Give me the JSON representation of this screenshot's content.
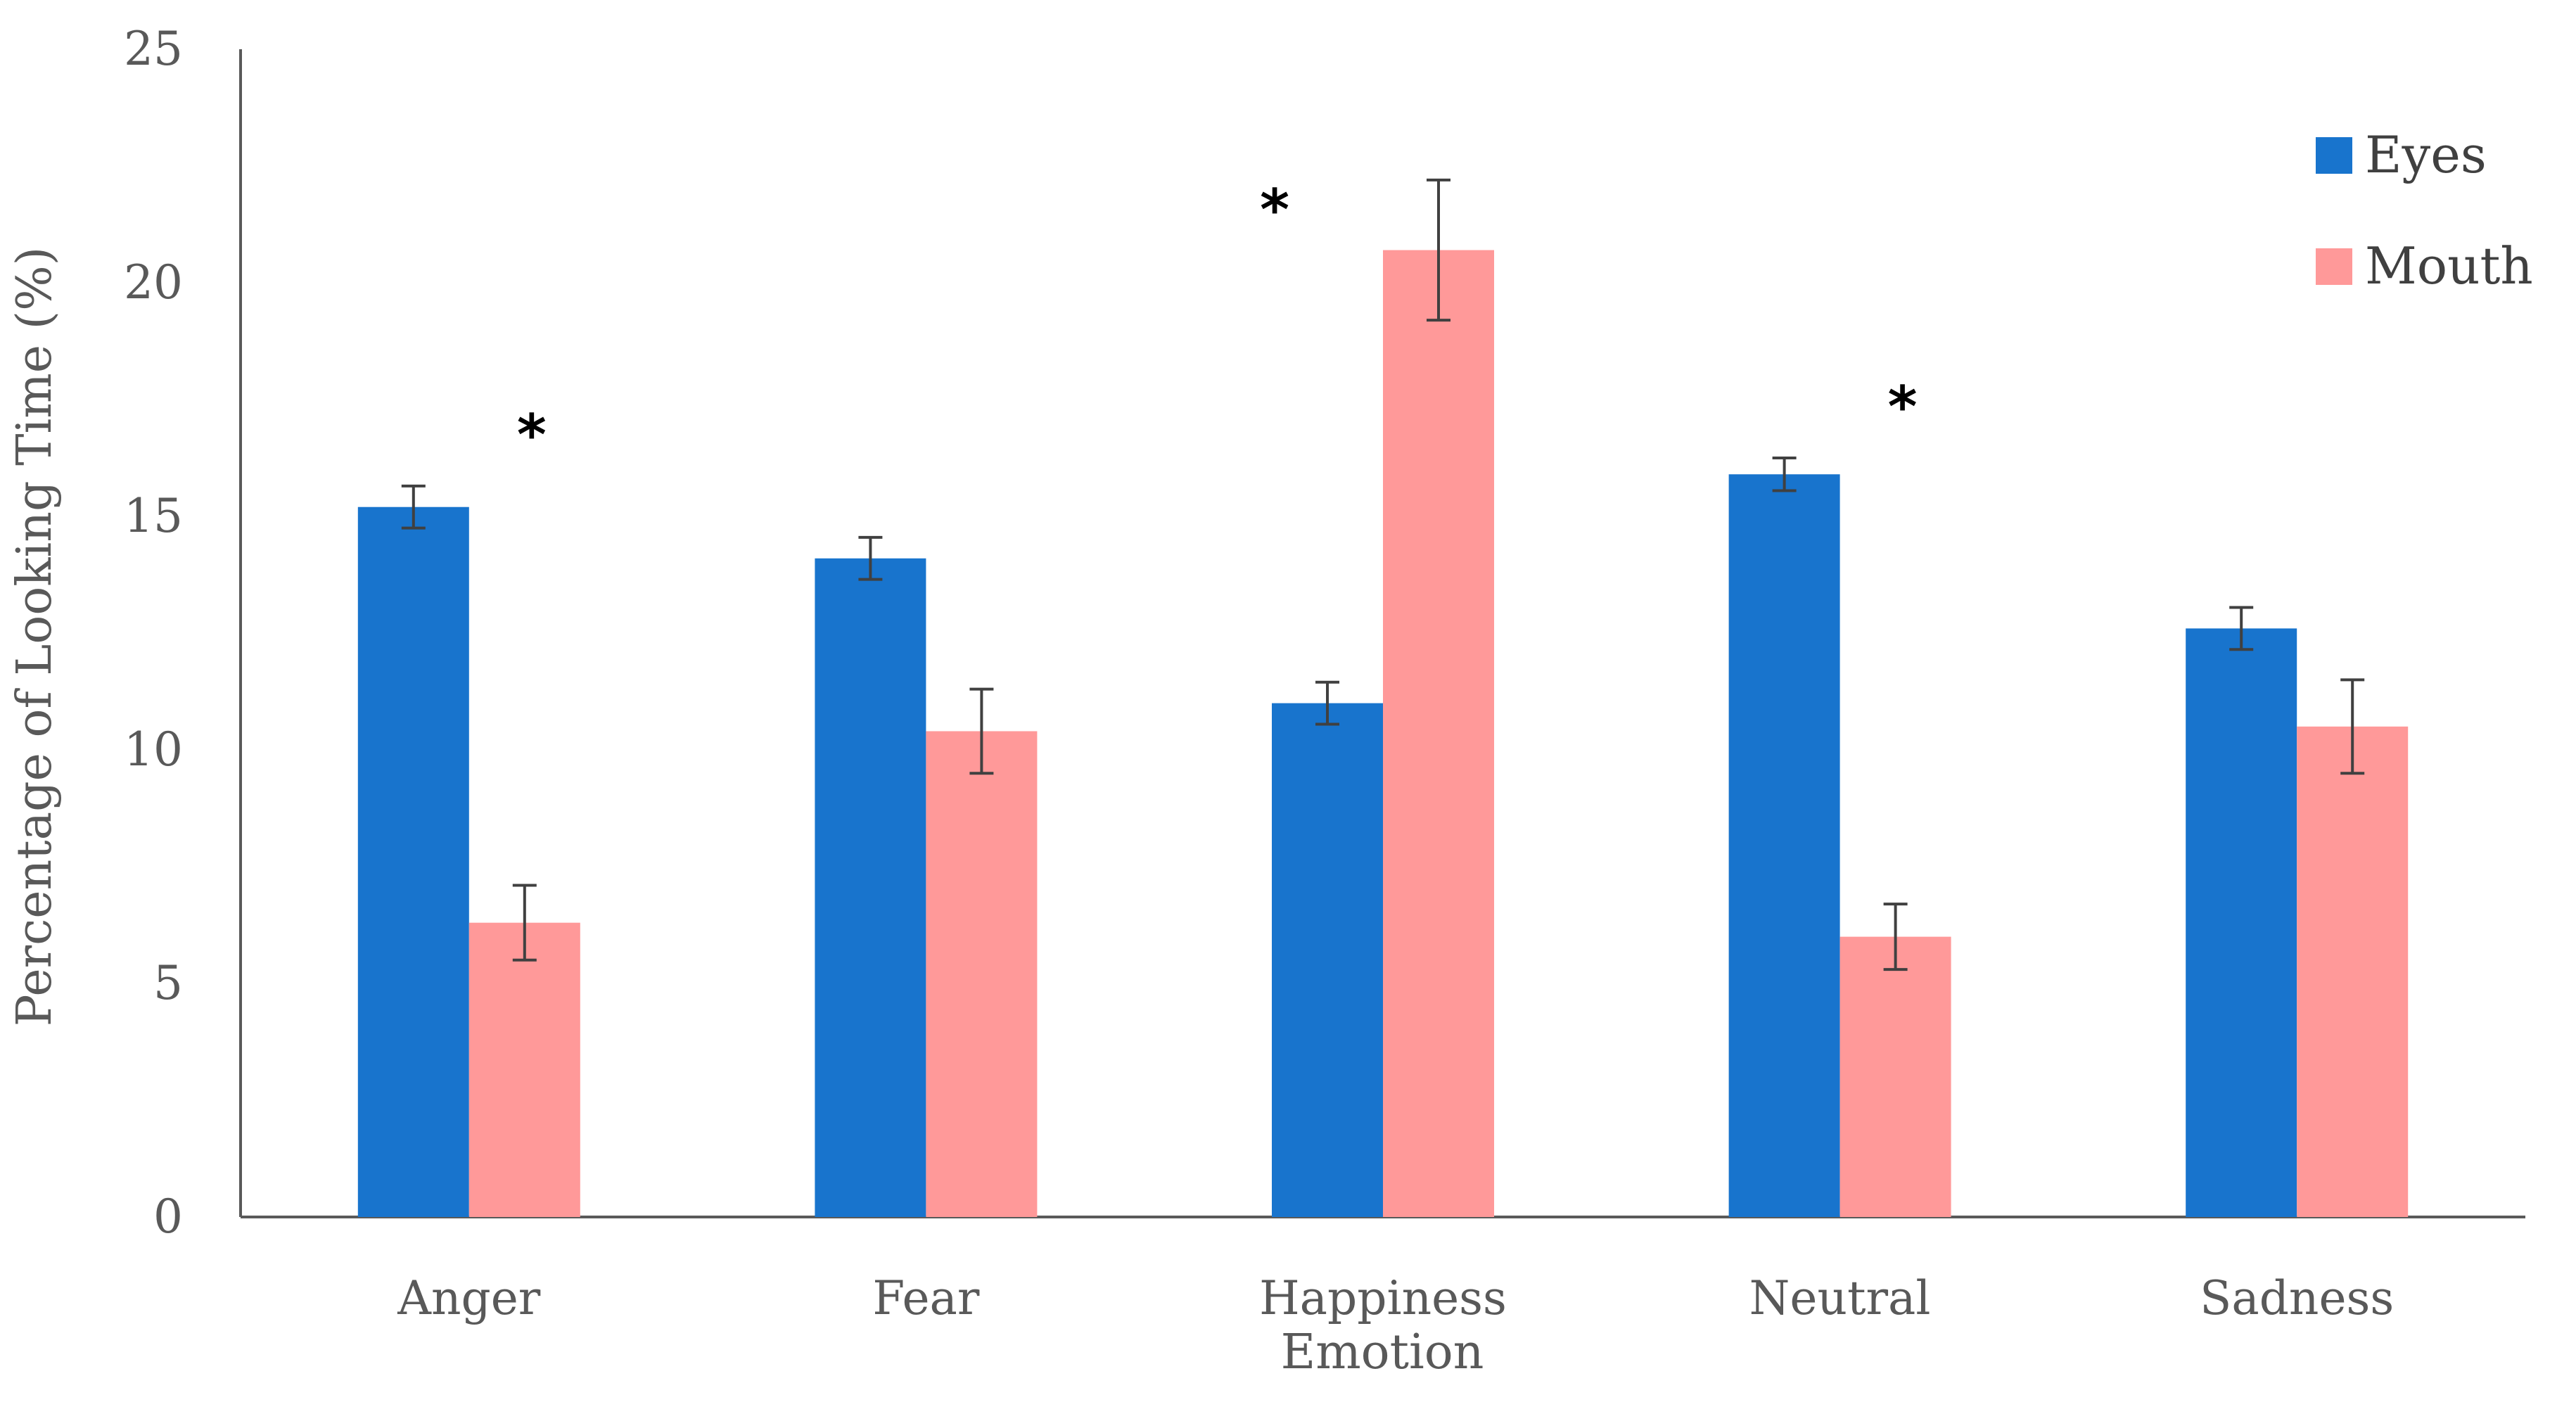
{
  "chart_data": {
    "type": "bar",
    "title": "",
    "xlabel": "Emotion",
    "ylabel": "Percentage of Looking Time (%)",
    "ylim": [
      0,
      25
    ],
    "yticks": [
      "0",
      "5",
      "10",
      "15",
      "20",
      "25"
    ],
    "grid": false,
    "legend_position": "top-right",
    "categories": [
      "Anger",
      "Fear",
      "Happiness",
      "Neutral",
      "Sadness"
    ],
    "series": [
      {
        "name": "Eyes",
        "color": "#1874CD",
        "values": [
          15.2,
          14.1,
          11.0,
          15.9,
          12.6
        ],
        "errors": [
          0.45,
          0.45,
          0.45,
          0.35,
          0.45
        ]
      },
      {
        "name": "Mouth",
        "color": "#FF9999",
        "values": [
          6.3,
          10.4,
          20.7,
          6.0,
          10.5
        ],
        "errors": [
          0.8,
          0.9,
          1.5,
          0.7,
          1.0
        ]
      }
    ],
    "significance": {
      "marker": "*",
      "categories": [
        "Anger",
        "Happiness",
        "Neutral"
      ]
    }
  }
}
